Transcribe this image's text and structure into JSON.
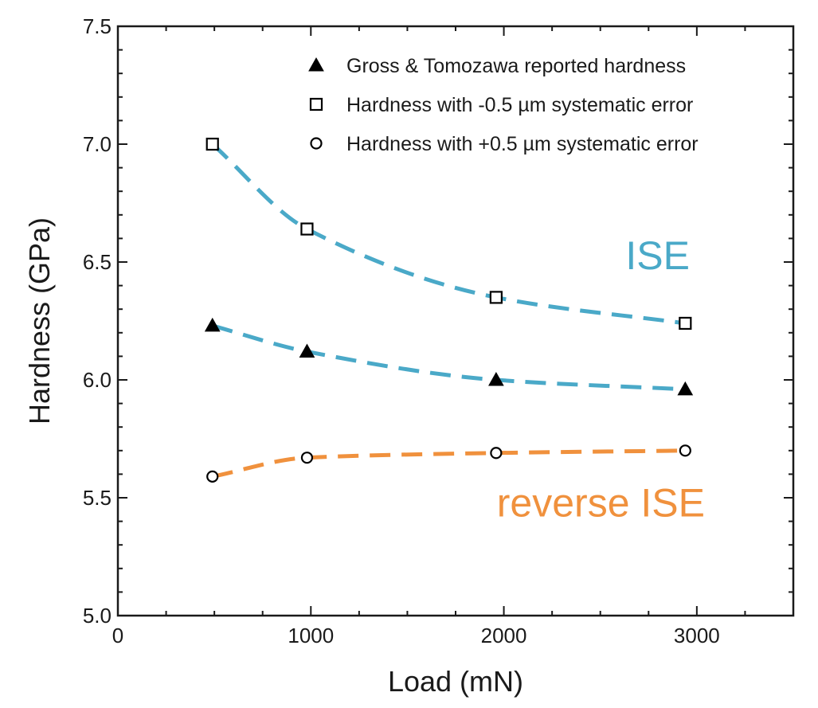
{
  "chart_data": {
    "type": "scatter",
    "title": "",
    "xlabel": "Load (mN)",
    "ylabel": "Hardness (GPa)",
    "xlim": [
      0,
      3500
    ],
    "ylim": [
      5.0,
      7.5
    ],
    "xticks": [
      0,
      1000,
      2000,
      3000
    ],
    "xtick_labels": [
      "0",
      "1000",
      "2000",
      "3000"
    ],
    "yticks": [
      5.0,
      5.5,
      6.0,
      6.5,
      7.0,
      7.5
    ],
    "ytick_labels": [
      "5.0",
      "5.5",
      "6.0",
      "6.5",
      "7.0",
      "7.5"
    ],
    "grid": false,
    "legend_position": "top-right",
    "series": [
      {
        "name": "Gross & Tomozawa reported hardness",
        "marker": "triangle",
        "x": [
          490,
          980,
          1960,
          2940
        ],
        "y": [
          6.23,
          6.12,
          6.0,
          5.96
        ],
        "fit_color": "#4aa9c8"
      },
      {
        "name": "Hardness with -0.5 µm systematic error",
        "marker": "square",
        "x": [
          490,
          980,
          1960,
          2940
        ],
        "y": [
          7.0,
          6.64,
          6.35,
          6.24
        ],
        "fit_color": "#4aa9c8"
      },
      {
        "name": "Hardness with +0.5 µm systematic error",
        "marker": "circle",
        "x": [
          490,
          980,
          1960,
          2940
        ],
        "y": [
          5.59,
          5.67,
          5.69,
          5.7
        ],
        "fit_color": "#f0913d"
      }
    ],
    "annotations": [
      {
        "text": "ISE",
        "x": 3000,
        "y": 6.47,
        "color": "#4aa9c8"
      },
      {
        "text": "reverse ISE",
        "x": 3000,
        "y": 5.42,
        "color": "#f0913d"
      }
    ]
  }
}
